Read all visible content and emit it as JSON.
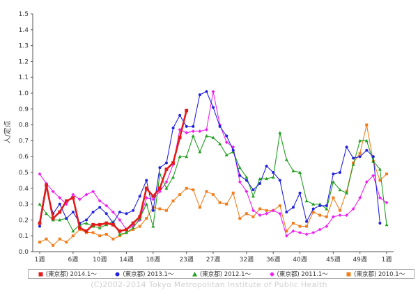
{
  "chart_data": {
    "type": "line",
    "ylabel": "人/定点",
    "ylim": [
      0,
      1.5
    ],
    "yticks": [
      "0.0",
      "0.1",
      "0.2",
      "0.3",
      "0.4",
      "0.5",
      "0.6",
      "0.7",
      "0.8",
      "0.9",
      "1.0",
      "1.1",
      "1.2",
      "1.3",
      "1.4",
      "1.5"
    ],
    "xlim": [
      1,
      53
    ],
    "xticks": [
      {
        "pos": 1,
        "label": "1週"
      },
      {
        "pos": 6,
        "label": "6週"
      },
      {
        "pos": 10,
        "label": "10週"
      },
      {
        "pos": 14,
        "label": "14週"
      },
      {
        "pos": 18,
        "label": "18週"
      },
      {
        "pos": 23,
        "label": "23週"
      },
      {
        "pos": 27,
        "label": "27週"
      },
      {
        "pos": 32,
        "label": "32週"
      },
      {
        "pos": 36,
        "label": "36週"
      },
      {
        "pos": 40,
        "label": "40週"
      },
      {
        "pos": 45,
        "label": "45週"
      },
      {
        "pos": 49,
        "label": "49週"
      },
      {
        "pos": 53,
        "label": "1週"
      }
    ],
    "grid": false,
    "legend_position": "bottom",
    "series": [
      {
        "name": "(東京都) 2010.1～",
        "color": "#f07f1f",
        "marker": "square",
        "values": [
          0.06,
          0.08,
          0.04,
          0.08,
          0.06,
          0.1,
          0.14,
          0.12,
          0.12,
          0.1,
          0.11,
          0.08,
          0.1,
          0.12,
          0.14,
          0.16,
          0.21,
          0.28,
          0.27,
          0.26,
          0.32,
          0.36,
          0.4,
          0.39,
          0.28,
          0.38,
          0.36,
          0.31,
          0.3,
          0.37,
          0.21,
          0.24,
          0.22,
          0.27,
          0.26,
          0.26,
          0.29,
          0.13,
          0.18,
          0.16,
          0.16,
          0.25,
          0.23,
          0.22,
          0.34,
          0.26,
          0.38,
          0.56,
          0.62,
          0.8,
          0.57,
          0.45,
          0.49
        ]
      },
      {
        "name": "(東京都) 2011.1～",
        "color": "#ee22ee",
        "marker": "diamond",
        "values": [
          0.49,
          0.43,
          0.38,
          0.34,
          0.3,
          0.36,
          0.33,
          0.36,
          0.38,
          0.32,
          0.29,
          0.25,
          0.2,
          0.14,
          0.16,
          0.2,
          0.34,
          0.33,
          0.38,
          0.44,
          0.55,
          0.77,
          0.75,
          0.76,
          0.76,
          0.77,
          1.01,
          0.8,
          0.69,
          0.66,
          0.44,
          0.38,
          0.26,
          0.23,
          0.24,
          0.26,
          0.24,
          0.1,
          0.13,
          0.12,
          0.11,
          0.12,
          0.14,
          0.16,
          0.22,
          0.23,
          0.23,
          0.27,
          0.34,
          0.44,
          0.48,
          0.34,
          0.31
        ]
      },
      {
        "name": "(東京都) 2012.1～",
        "color": "#22a022",
        "marker": "triangle",
        "values": [
          0.3,
          0.24,
          0.2,
          0.2,
          0.21,
          0.13,
          0.17,
          0.18,
          0.16,
          0.15,
          0.17,
          0.19,
          0.11,
          0.12,
          0.15,
          0.21,
          0.3,
          0.16,
          0.49,
          0.4,
          0.47,
          0.6,
          0.6,
          0.73,
          0.63,
          0.73,
          0.72,
          0.68,
          0.61,
          0.63,
          0.53,
          0.47,
          0.35,
          0.46,
          0.46,
          0.47,
          0.75,
          0.58,
          0.51,
          0.5,
          0.32,
          0.3,
          0.3,
          0.27,
          0.44,
          0.39,
          0.37,
          0.55,
          0.7,
          0.7,
          0.57,
          0.52,
          0.17
        ]
      },
      {
        "name": "(東京都) 2013.1～",
        "color": "#2222dd",
        "marker": "circle",
        "values": [
          0.16,
          0.4,
          0.24,
          0.3,
          0.21,
          0.25,
          0.18,
          0.2,
          0.25,
          0.28,
          0.24,
          0.18,
          0.25,
          0.24,
          0.26,
          0.35,
          0.45,
          0.26,
          0.53,
          0.56,
          0.78,
          0.86,
          0.79,
          0.79,
          0.99,
          1.01,
          0.91,
          0.79,
          0.73,
          0.64,
          0.48,
          0.45,
          0.39,
          0.43,
          0.54,
          0.5,
          0.45,
          0.25,
          0.28,
          0.37,
          0.19,
          0.27,
          0.29,
          0.29,
          0.49,
          0.5,
          0.66,
          0.59,
          0.6,
          0.64,
          0.6,
          0.18
        ]
      },
      {
        "name": "(東京都) 2014.1～",
        "color": "#e21b1b",
        "marker": "square",
        "values": [
          0.18,
          0.42,
          0.21,
          0.25,
          0.32,
          0.34,
          0.15,
          0.13,
          0.17,
          0.17,
          0.18,
          0.17,
          0.13,
          0.14,
          0.18,
          0.22,
          0.4,
          0.35,
          0.4,
          0.52,
          0.56,
          0.72,
          0.89
        ]
      }
    ]
  },
  "footer": "(C)2002-2014 Tokyo Metropolitan Institute of Public Health",
  "legend_marker_note": "square, circle, triangle, diamond, square"
}
